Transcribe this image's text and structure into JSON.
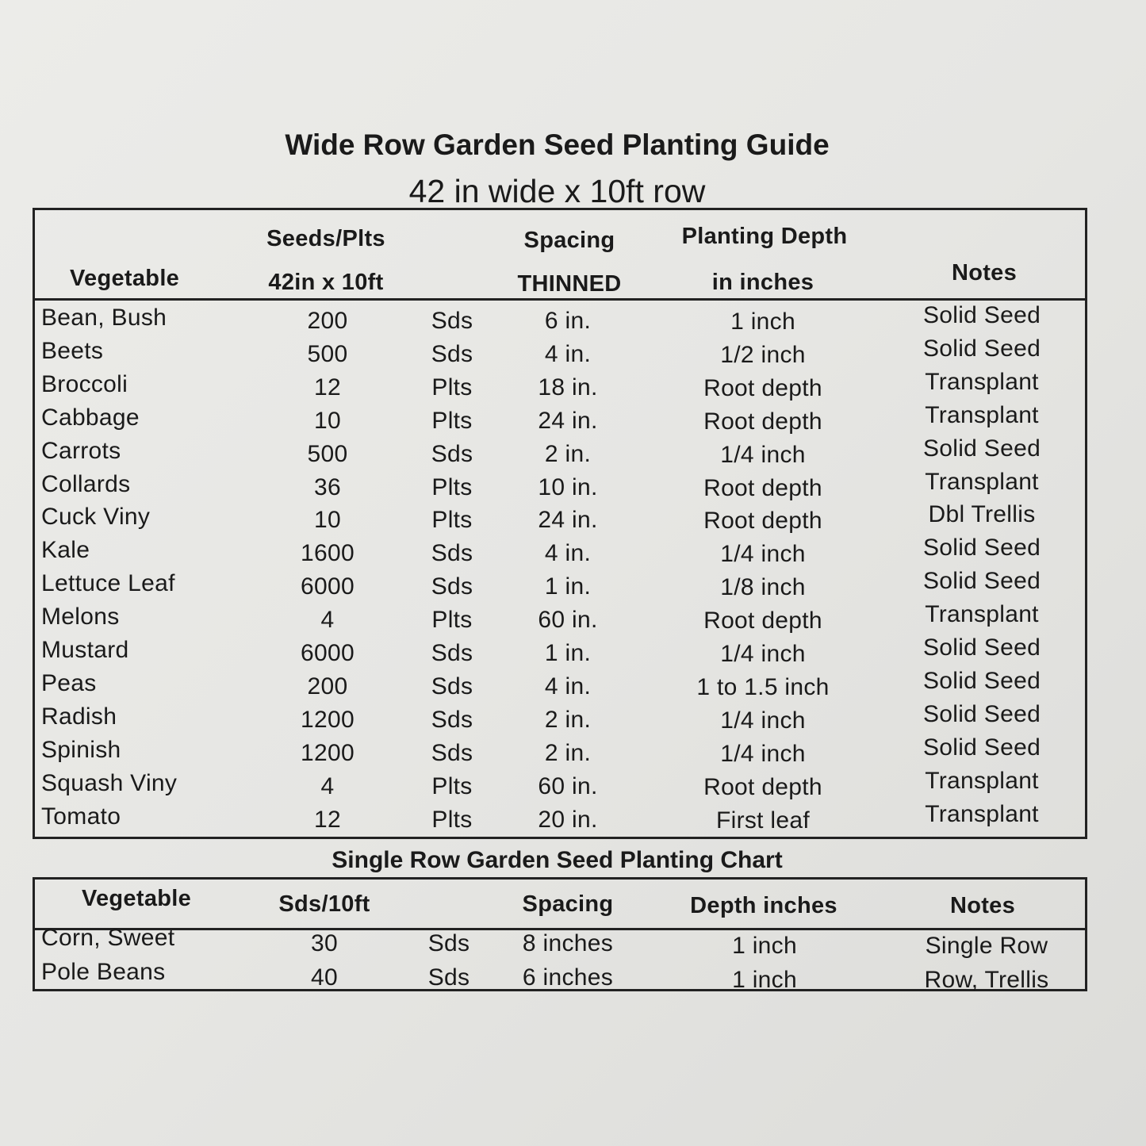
{
  "wide": {
    "title": "Wide Row Garden Seed Planting Guide",
    "subtitle": "42 in wide x 10ft row",
    "headers": {
      "vegetable": "Vegetable",
      "seeds_1": "Seeds/Plts",
      "seeds_2": "42in x 10ft",
      "spacing_1": "Spacing",
      "spacing_2": "THINNED",
      "depth_1": "Planting Depth",
      "depth_2": "in inches",
      "notes": "Notes"
    },
    "rows": [
      {
        "vegetable": "Bean, Bush",
        "count": "200",
        "unit": "Sds",
        "spacing": "6 in.",
        "depth": "1 inch",
        "notes": "Solid Seed"
      },
      {
        "vegetable": "Beets",
        "count": "500",
        "unit": "Sds",
        "spacing": "4 in.",
        "depth": "1/2 inch",
        "notes": "Solid Seed"
      },
      {
        "vegetable": "Broccoli",
        "count": "12",
        "unit": "Plts",
        "spacing": "18 in.",
        "depth": "Root depth",
        "notes": "Transplant"
      },
      {
        "vegetable": "Cabbage",
        "count": "10",
        "unit": "Plts",
        "spacing": "24 in.",
        "depth": "Root depth",
        "notes": "Transplant"
      },
      {
        "vegetable": "Carrots",
        "count": "500",
        "unit": "Sds",
        "spacing": "2 in.",
        "depth": "1/4 inch",
        "notes": "Solid Seed"
      },
      {
        "vegetable": "Collards",
        "count": "36",
        "unit": "Plts",
        "spacing": "10 in.",
        "depth": "Root depth",
        "notes": "Transplant"
      },
      {
        "vegetable": "Cuck  Viny",
        "count": "10",
        "unit": "Plts",
        "spacing": "24 in.",
        "depth": "Root depth",
        "notes": "Dbl Trellis"
      },
      {
        "vegetable": "Kale",
        "count": "1600",
        "unit": "Sds",
        "spacing": "4  in.",
        "depth": "1/4 inch",
        "notes": "Solid Seed"
      },
      {
        "vegetable": "Lettuce Leaf",
        "count": "6000",
        "unit": "Sds",
        "spacing": "1 in.",
        "depth": "1/8 inch",
        "notes": "Solid Seed"
      },
      {
        "vegetable": "Melons",
        "count": "4",
        "unit": "Plts",
        "spacing": "60 in.",
        "depth": "Root depth",
        "notes": "Transplant"
      },
      {
        "vegetable": "Mustard",
        "count": "6000",
        "unit": "Sds",
        "spacing": "1 in.",
        "depth": "1/4 inch",
        "notes": "Solid Seed"
      },
      {
        "vegetable": "Peas",
        "count": "200",
        "unit": "Sds",
        "spacing": "4 in.",
        "depth": "1 to 1.5 inch",
        "notes": "Solid Seed"
      },
      {
        "vegetable": "Radish",
        "count": "1200",
        "unit": "Sds",
        "spacing": "2  in.",
        "depth": "1/4 inch",
        "notes": "Solid Seed"
      },
      {
        "vegetable": "Spinish",
        "count": "1200",
        "unit": "Sds",
        "spacing": "2  in.",
        "depth": "1/4 inch",
        "notes": "Solid Seed"
      },
      {
        "vegetable": "Squash Viny",
        "count": "4",
        "unit": "Plts",
        "spacing": "60 in.",
        "depth": "Root depth",
        "notes": "Transplant"
      },
      {
        "vegetable": "Tomato",
        "count": "12",
        "unit": "Plts",
        "spacing": "20 in.",
        "depth": "First leaf",
        "notes": "Transplant"
      }
    ]
  },
  "single": {
    "title": "Single Row Garden Seed Planting Chart",
    "headers": {
      "vegetable": "Vegetable",
      "seeds": "Sds/10ft",
      "spacing": "Spacing",
      "depth": "Depth inches",
      "notes": "Notes"
    },
    "rows": [
      {
        "vegetable": "Corn, Sweet",
        "count": "30",
        "unit": "Sds",
        "spacing": "8 inches",
        "depth": "1 inch",
        "notes": "Single Row"
      },
      {
        "vegetable": "Pole Beans",
        "count": "40",
        "unit": "Sds",
        "spacing": "6 inches",
        "depth": "1 inch",
        "notes": "Row, Trellis"
      }
    ]
  }
}
